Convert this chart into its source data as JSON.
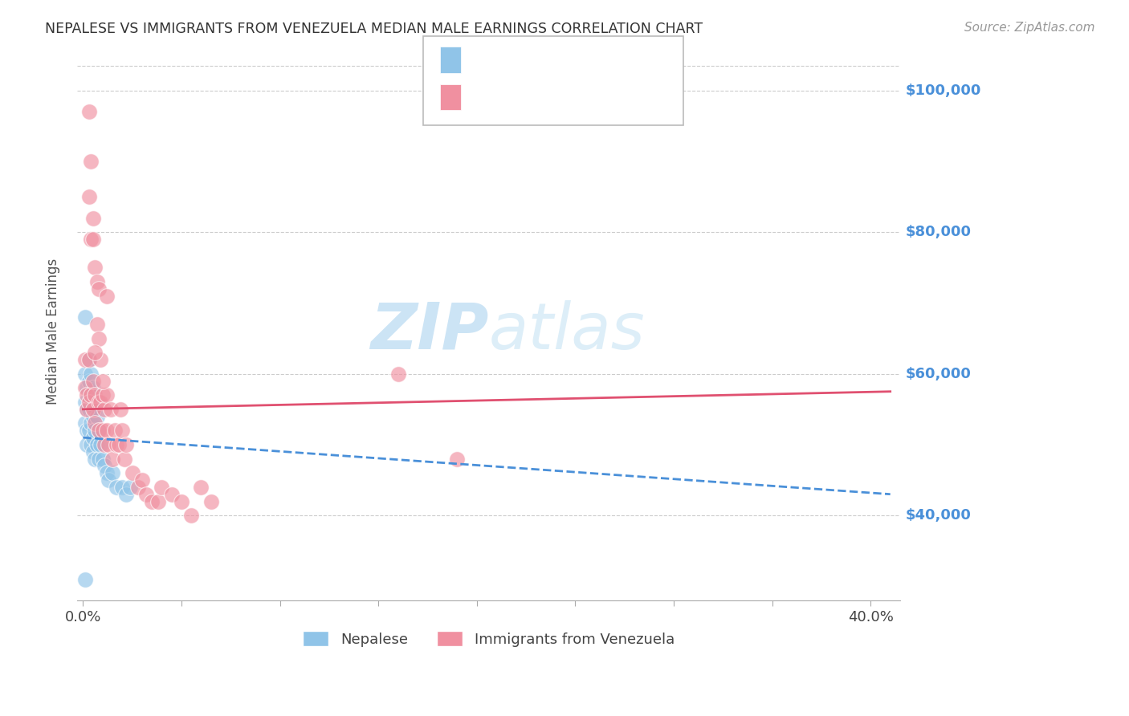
{
  "title": "NEPALESE VS IMMIGRANTS FROM VENEZUELA MEDIAN MALE EARNINGS CORRELATION CHART",
  "source": "Source: ZipAtlas.com",
  "ylabel": "Median Male Earnings",
  "ytick_values": [
    40000,
    60000,
    80000,
    100000
  ],
  "ytick_labels": [
    "$40,000",
    "$60,000",
    "$80,000",
    "$100,000"
  ],
  "ymin": 28000,
  "ymax": 104000,
  "xmin": -0.003,
  "xmax": 0.415,
  "background_color": "#ffffff",
  "grid_color": "#cccccc",
  "title_color": "#333333",
  "source_color": "#999999",
  "ylabel_color": "#555555",
  "ytick_color": "#4a90d9",
  "nepalese_scatter_color": "#90c4e8",
  "venezuela_scatter_color": "#f090a0",
  "nepalese_line_color": "#4a90d9",
  "venezuela_line_color": "#e05070",
  "watermark_color": "#cce4f5",
  "nepalese_x": [
    0.001,
    0.001,
    0.001,
    0.001,
    0.002,
    0.002,
    0.002,
    0.002,
    0.003,
    0.003,
    0.003,
    0.003,
    0.004,
    0.004,
    0.004,
    0.004,
    0.005,
    0.005,
    0.005,
    0.005,
    0.005,
    0.006,
    0.006,
    0.006,
    0.007,
    0.007,
    0.008,
    0.008,
    0.009,
    0.01,
    0.011,
    0.012,
    0.013,
    0.015,
    0.017,
    0.02,
    0.022,
    0.024,
    0.001
  ],
  "nepalese_y": [
    68000,
    60000,
    56000,
    53000,
    58000,
    55000,
    52000,
    50000,
    62000,
    59000,
    55000,
    52000,
    60000,
    57000,
    53000,
    50000,
    58000,
    54000,
    51000,
    49000,
    56000,
    55000,
    52000,
    48000,
    54000,
    50000,
    52000,
    48000,
    50000,
    48000,
    47000,
    46000,
    45000,
    46000,
    44000,
    44000,
    43000,
    44000,
    31000
  ],
  "venezuela_x": [
    0.001,
    0.001,
    0.002,
    0.002,
    0.003,
    0.003,
    0.003,
    0.004,
    0.004,
    0.005,
    0.005,
    0.005,
    0.006,
    0.006,
    0.006,
    0.007,
    0.007,
    0.008,
    0.008,
    0.008,
    0.009,
    0.009,
    0.01,
    0.01,
    0.011,
    0.011,
    0.012,
    0.012,
    0.013,
    0.014,
    0.015,
    0.016,
    0.017,
    0.018,
    0.019,
    0.02,
    0.021,
    0.022,
    0.025,
    0.028,
    0.03,
    0.032,
    0.035,
    0.038,
    0.04,
    0.045,
    0.05,
    0.055,
    0.06,
    0.065,
    0.003,
    0.004,
    0.005,
    0.006,
    0.008,
    0.01,
    0.012,
    0.16,
    0.19
  ],
  "venezuela_y": [
    58000,
    62000,
    55000,
    57000,
    97000,
    62000,
    56000,
    90000,
    57000,
    82000,
    59000,
    55000,
    75000,
    57000,
    53000,
    73000,
    67000,
    65000,
    56000,
    52000,
    62000,
    56000,
    57000,
    52000,
    55000,
    50000,
    57000,
    52000,
    50000,
    55000,
    48000,
    52000,
    50000,
    50000,
    55000,
    52000,
    48000,
    50000,
    46000,
    44000,
    45000,
    43000,
    42000,
    42000,
    44000,
    43000,
    42000,
    40000,
    44000,
    42000,
    85000,
    79000,
    79000,
    63000,
    72000,
    59000,
    71000,
    60000,
    48000
  ],
  "nep_trend_x": [
    0.0,
    0.41
  ],
  "nep_trend_y": [
    51000,
    43000
  ],
  "ven_trend_x": [
    0.0,
    0.41
  ],
  "ven_trend_y": [
    55000,
    57500
  ]
}
